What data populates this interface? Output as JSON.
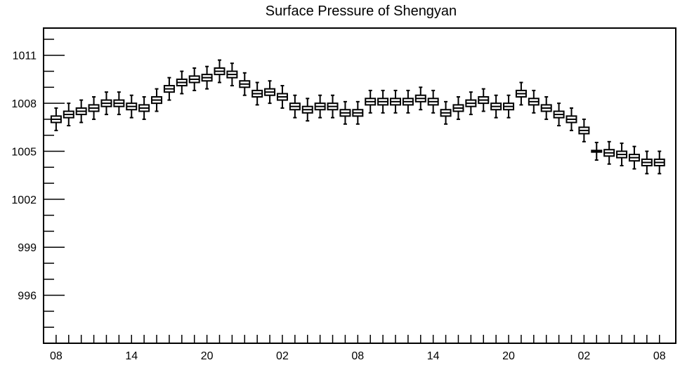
{
  "chart_data": {
    "type": "box",
    "title": "Surface Pressure of Shengyan",
    "xlabel": "",
    "ylabel": "",
    "ylim": [
      993,
      1012.7
    ],
    "y_ticks": [
      996,
      999,
      1002,
      1005,
      1008,
      1011
    ],
    "y_tick_labels": [
      "996",
      "999",
      "1002",
      "1005",
      "1008",
      "1011"
    ],
    "x_tick_labels": [
      "08",
      "14",
      "20",
      "02",
      "08",
      "14",
      "20",
      "02",
      "08"
    ],
    "x_labelled_hours": [
      0,
      6,
      12,
      18,
      24,
      30,
      36,
      42,
      48
    ],
    "x_range": [
      -1,
      49.3
    ],
    "grid": false,
    "color": "#000000",
    "series": [
      {
        "hours": [
          0,
          1,
          2,
          3,
          4,
          5,
          6,
          7,
          8,
          9,
          10,
          11,
          12,
          13,
          14,
          15,
          16,
          17,
          18,
          19,
          20,
          21,
          22,
          23,
          24,
          25,
          26,
          27,
          28,
          29,
          30,
          31,
          32,
          33,
          34,
          35,
          36,
          37,
          38,
          39,
          40,
          41,
          42,
          43,
          44,
          45,
          46,
          47,
          48
        ],
        "median": [
          1007.0,
          1007.3,
          1007.5,
          1007.7,
          1008.0,
          1008.0,
          1007.8,
          1007.7,
          1008.2,
          1008.9,
          1009.3,
          1009.5,
          1009.6,
          1010.0,
          1009.8,
          1009.2,
          1008.6,
          1008.7,
          1008.4,
          1007.8,
          1007.6,
          1007.8,
          1007.8,
          1007.4,
          1007.4,
          1008.1,
          1008.1,
          1008.1,
          1008.1,
          1008.3,
          1008.1,
          1007.4,
          1007.7,
          1008.0,
          1008.2,
          1007.8,
          1007.8,
          1008.6,
          1008.1,
          1007.7,
          1007.3,
          1007.0,
          1006.3,
          1005.0,
          1004.9,
          1004.8,
          1004.6,
          1004.3,
          1004.3
        ],
        "q1": [
          1006.8,
          1007.1,
          1007.3,
          1007.5,
          1007.8,
          1007.8,
          1007.6,
          1007.5,
          1008.0,
          1008.7,
          1009.1,
          1009.3,
          1009.4,
          1009.8,
          1009.6,
          1009.0,
          1008.4,
          1008.5,
          1008.2,
          1007.6,
          1007.4,
          1007.6,
          1007.6,
          1007.2,
          1007.2,
          1007.9,
          1007.9,
          1007.9,
          1007.9,
          1008.1,
          1007.9,
          1007.2,
          1007.5,
          1007.8,
          1008.0,
          1007.6,
          1007.6,
          1008.4,
          1007.9,
          1007.5,
          1007.1,
          1006.8,
          1006.1,
          1004.95,
          1004.7,
          1004.6,
          1004.4,
          1004.1,
          1004.1
        ],
        "q3": [
          1007.2,
          1007.5,
          1007.7,
          1007.9,
          1008.2,
          1008.2,
          1008.0,
          1007.9,
          1008.4,
          1009.1,
          1009.5,
          1009.7,
          1009.8,
          1010.2,
          1010.0,
          1009.4,
          1008.8,
          1008.9,
          1008.6,
          1008.0,
          1007.8,
          1008.0,
          1008.0,
          1007.6,
          1007.6,
          1008.3,
          1008.3,
          1008.3,
          1008.3,
          1008.5,
          1008.3,
          1007.6,
          1007.9,
          1008.2,
          1008.4,
          1008.0,
          1008.0,
          1008.8,
          1008.3,
          1007.9,
          1007.5,
          1007.2,
          1006.5,
          1005.05,
          1005.1,
          1005.0,
          1004.8,
          1004.5,
          1004.5
        ]
      }
    ]
  }
}
